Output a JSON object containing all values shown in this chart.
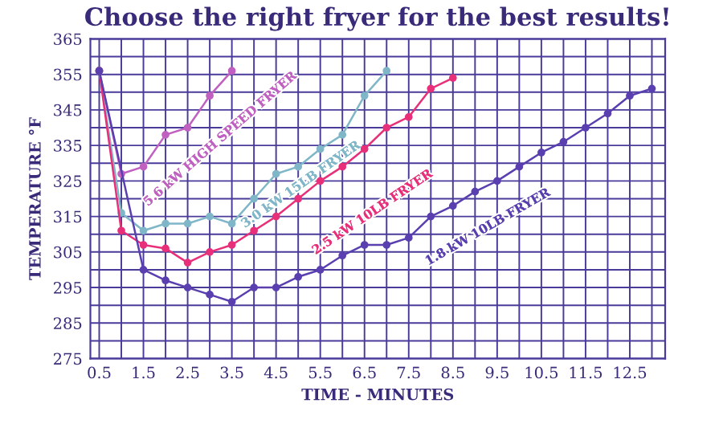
{
  "chart_data": {
    "type": "line",
    "title": "Choose the right fryer for the best results!",
    "xlabel": "TIME - MINUTES",
    "ylabel": "TEMPERATURE °F",
    "xlim": [
      0.3,
      13.3
    ],
    "ylim": [
      275,
      365
    ],
    "xticks": [
      0.5,
      {
        "value": 1,
        "label": null
      },
      1.5,
      {
        "value": 2,
        "label": null
      },
      2.5,
      {
        "value": 3,
        "label": null
      },
      3.5,
      {
        "value": 4,
        "label": null
      },
      4.5,
      {
        "value": 5,
        "label": null
      },
      5.5,
      {
        "value": 6,
        "label": null
      },
      6.5,
      {
        "value": 7,
        "label": null
      },
      7.5,
      {
        "value": 8,
        "label": null
      },
      8.5,
      {
        "value": 9,
        "label": null
      },
      9.5,
      {
        "value": 10,
        "label": null
      },
      10.5,
      {
        "value": 11,
        "label": null
      },
      11.5,
      {
        "value": 12,
        "label": null
      },
      12.5,
      {
        "value": 13,
        "label": null
      }
    ],
    "yticks": [
      275,
      {
        "value": 280,
        "label": null
      },
      285,
      {
        "value": 290,
        "label": null
      },
      295,
      {
        "value": 300,
        "label": null
      },
      305,
      {
        "value": 310,
        "label": null
      },
      315,
      {
        "value": 320,
        "label": null
      },
      325,
      {
        "value": 330,
        "label": null
      },
      335,
      {
        "value": 340,
        "label": null
      },
      345,
      {
        "value": 350,
        "label": null
      },
      355,
      {
        "value": 360,
        "label": null
      },
      365
    ],
    "grid": true,
    "marker": "circle",
    "line_style": "solid",
    "series": [
      {
        "name": "5.6 kW HIGH SPEED FRYER",
        "color": "#c060c0",
        "x": [
          0.5,
          1,
          1.5,
          2,
          2.5,
          3,
          3.5
        ],
        "values": [
          356,
          327,
          329,
          338,
          340,
          349,
          356
        ]
      },
      {
        "name": "3.0 kW 15LB FRYER",
        "color": "#7fb6c8",
        "x": [
          0.5,
          1,
          1.5,
          2,
          2.5,
          3,
          3.5,
          4,
          4.5,
          5,
          5.5,
          6,
          6.5,
          7
        ],
        "values": [
          356,
          316,
          311,
          313,
          313,
          315,
          313,
          320,
          327,
          329,
          334,
          338,
          349,
          356
        ]
      },
      {
        "name": "2.5 kW 10LB FRYER",
        "color": "#e8307a",
        "x": [
          0.5,
          1,
          1.5,
          2,
          2.5,
          3,
          3.5,
          4,
          4.5,
          5,
          5.5,
          6,
          6.5,
          7,
          7.5,
          8,
          8.5
        ],
        "values": [
          356,
          311,
          307,
          306,
          302,
          305,
          307,
          311,
          315,
          320,
          325,
          329,
          334,
          340,
          343,
          351,
          354
        ]
      },
      {
        "name": "1.8 kW 10LB FRYER",
        "color": "#5a3fb0",
        "x": [
          0.5,
          1.5,
          2,
          2.5,
          3,
          3.5,
          4,
          4.5,
          5,
          5.5,
          6,
          6.5,
          7,
          7.5,
          8,
          8.5,
          9,
          9.5,
          10,
          10.5,
          11,
          11.5,
          12,
          12.5,
          13
        ],
        "values": [
          356,
          300,
          297,
          295,
          293,
          291,
          295,
          295,
          298,
          300,
          304,
          307,
          307,
          309,
          315,
          318,
          322,
          325,
          329,
          333,
          336,
          340,
          344,
          349,
          351
        ]
      }
    ]
  }
}
